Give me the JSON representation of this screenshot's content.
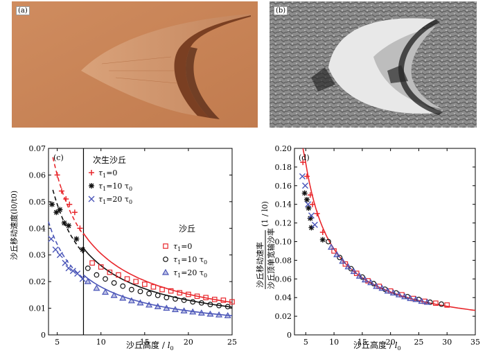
{
  "panel_a": {
    "label": "(a)"
  },
  "panel_b": {
    "label": "(b)"
  },
  "colors": {
    "red": "#e8262b",
    "black": "#111111",
    "blue": "#4a55b8",
    "sand": "#c8845a"
  },
  "chart_data": [
    {
      "type": "scatter",
      "panel": "(c)",
      "xlabel": "沙丘高度 / ",
      "xlabel_sym": "l",
      "xlabel_sub": "0",
      "ylabel": "沙丘移动速度(l0/t0)",
      "xlim": [
        4,
        25
      ],
      "ylim": [
        0,
        0.07
      ],
      "xticks": [
        5,
        10,
        15,
        20,
        25
      ],
      "yticks": [
        0,
        0.01,
        0.02,
        0.03,
        0.04,
        0.05,
        0.06,
        0.07
      ],
      "ytick_labels": [
        "0",
        "0.01",
        "0.02",
        "0.03",
        "0.04",
        "0.05",
        "0.06",
        "0.07"
      ],
      "divider_x": 8,
      "legend_left_title": "次生沙丘",
      "legend_right_title": "沙丘",
      "legend_entries": [
        {
          "sym": "τ",
          "sub": "1",
          "rest": "=0"
        },
        {
          "sym": "τ",
          "sub": "1",
          "rest": "=10 τ",
          "sub2": "0"
        },
        {
          "sym": "τ",
          "sub": "1",
          "rest": "=20 τ",
          "sub2": "0"
        }
      ],
      "series": [
        {
          "name": "次生沙丘 τ1=0",
          "marker": "plus",
          "color": "#e8262b",
          "x": [
            5.0,
            5.5,
            6.0,
            6.4,
            7.0,
            7.6
          ],
          "y": [
            0.06,
            0.054,
            0.051,
            0.049,
            0.046,
            0.04
          ]
        },
        {
          "name": "次生沙丘 τ1=10τ0",
          "marker": "star",
          "color": "#111111",
          "x": [
            4.4,
            4.9,
            5.3,
            5.8,
            6.3,
            7.2,
            7.9
          ],
          "y": [
            0.049,
            0.046,
            0.047,
            0.042,
            0.041,
            0.036,
            0.032
          ]
        },
        {
          "name": "次生沙丘 τ1=20τ0",
          "marker": "cross",
          "color": "#4a55b8",
          "x": [
            4.3,
            4.8,
            5.3,
            5.9,
            6.3,
            6.8,
            7.3,
            7.9
          ],
          "y": [
            0.036,
            0.032,
            0.03,
            0.027,
            0.025,
            0.024,
            0.023,
            0.021
          ]
        },
        {
          "name": "沙丘 τ1=0",
          "marker": "square",
          "color": "#e8262b",
          "x": [
            9,
            10,
            11,
            12,
            13,
            14,
            15,
            16,
            17,
            18,
            19,
            20,
            21,
            22,
            23,
            24,
            25
          ],
          "y": [
            0.027,
            0.0255,
            0.0235,
            0.0225,
            0.021,
            0.02,
            0.019,
            0.018,
            0.017,
            0.0165,
            0.0158,
            0.0152,
            0.0145,
            0.014,
            0.0133,
            0.013,
            0.0124
          ]
        },
        {
          "name": "沙丘 τ1=10τ0",
          "marker": "circle",
          "color": "#111111",
          "x": [
            8.5,
            9.5,
            10.5,
            11.5,
            12.5,
            13.5,
            14.5,
            15.5,
            16.5,
            17.5,
            18.5,
            19.5,
            20.5,
            21.5,
            22.5,
            23.5,
            24.5
          ],
          "y": [
            0.025,
            0.0225,
            0.021,
            0.0195,
            0.0183,
            0.017,
            0.0163,
            0.0155,
            0.0148,
            0.014,
            0.0135,
            0.013,
            0.0124,
            0.012,
            0.0114,
            0.011,
            0.0106
          ]
        },
        {
          "name": "沙丘 τ1=20τ0",
          "marker": "triangle",
          "color": "#4a55b8",
          "x": [
            8.5,
            9.5,
            10.5,
            11.5,
            12.5,
            13.5,
            14.5,
            15.5,
            16.5,
            17.5,
            18.5,
            19.5,
            20.5,
            21.5,
            22.5,
            23.5,
            24.5
          ],
          "y": [
            0.02,
            0.0175,
            0.016,
            0.0148,
            0.0138,
            0.0128,
            0.012,
            0.0112,
            0.0106,
            0.01,
            0.0095,
            0.009,
            0.0086,
            0.0082,
            0.0078,
            0.0075,
            0.0072
          ]
        }
      ],
      "fits": [
        {
          "color": "#e8262b",
          "dash": true,
          "a": 0.3,
          "xrange": [
            4.5,
            8
          ]
        },
        {
          "color": "#111111",
          "dash": true,
          "a": 0.245,
          "xrange": [
            4.5,
            8
          ]
        },
        {
          "color": "#4a55b8",
          "dash": true,
          "a": 0.17,
          "xrange": [
            4.0,
            8
          ]
        },
        {
          "color": "#e8262b",
          "dash": false,
          "a": 0.305,
          "xrange": [
            8,
            25
          ]
        },
        {
          "color": "#111111",
          "dash": false,
          "a": 0.26,
          "xrange": [
            8,
            25
          ]
        },
        {
          "color": "#4a55b8",
          "dash": false,
          "a": 0.18,
          "xrange": [
            8,
            25
          ]
        }
      ]
    },
    {
      "type": "scatter",
      "panel": "(d)",
      "xlabel": "沙丘高度 / ",
      "xlabel_sym": "l",
      "xlabel_sub": "0",
      "ylabel_num": "沙丘移动速率",
      "ylabel_den": "沙丘顶单宽输沙率",
      "ylabel_unit": "(1 / l0)",
      "xlim": [
        3,
        35
      ],
      "ylim": [
        0,
        0.2
      ],
      "xticks": [
        5,
        10,
        15,
        20,
        25,
        30,
        35
      ],
      "yticks": [
        0,
        0.02,
        0.04,
        0.06,
        0.08,
        0.1,
        0.12,
        0.14,
        0.16,
        0.18,
        0.2
      ],
      "ytick_labels": [
        "0",
        "0.02",
        "0.04",
        "0.06",
        "0.08",
        "0.10",
        "0.12",
        "0.14",
        "0.16",
        "0.18",
        "0.20"
      ],
      "fit_a": 0.92,
      "fit_xrange": [
        4.5,
        35
      ],
      "series": [
        {
          "name": "τ1=0",
          "marker": "plus",
          "color": "#e8262b",
          "x": [
            4.5,
            5.2,
            5.8,
            6.2,
            7.0,
            8.0
          ],
          "y": [
            0.185,
            0.17,
            0.15,
            0.14,
            0.13,
            0.11
          ]
        },
        {
          "name": "τ1=10τ0",
          "marker": "star",
          "color": "#111111",
          "x": [
            4.8,
            5.2,
            5.5,
            5.8,
            6.0,
            8.0
          ],
          "y": [
            0.152,
            0.145,
            0.136,
            0.125,
            0.115,
            0.102
          ]
        },
        {
          "name": "τ1=20τ0",
          "marker": "cross",
          "color": "#4a55b8",
          "x": [
            4.4,
            4.9,
            5.4,
            6.0,
            6.6
          ],
          "y": [
            0.17,
            0.16,
            0.14,
            0.128,
            0.118
          ]
        },
        {
          "name": "沙丘 τ1=0",
          "marker": "square",
          "color": "#e8262b",
          "x": [
            10,
            12,
            14,
            16,
            18,
            20,
            22,
            24,
            26,
            28,
            30
          ],
          "y": [
            0.09,
            0.076,
            0.066,
            0.058,
            0.052,
            0.047,
            0.043,
            0.039,
            0.036,
            0.034,
            0.032
          ]
        },
        {
          "name": "沙丘 τ1=10τ0",
          "marker": "circle",
          "color": "#111111",
          "x": [
            9,
            11,
            13,
            15,
            17,
            19,
            21,
            23,
            25,
            27,
            29
          ],
          "y": [
            0.1,
            0.083,
            0.071,
            0.062,
            0.055,
            0.049,
            0.045,
            0.041,
            0.038,
            0.035,
            0.033
          ]
        },
        {
          "name": "沙丘 τ1=20τ0",
          "marker": "triangle",
          "color": "#4a55b8",
          "x": [
            9.5,
            10.5,
            11.5,
            12.5,
            13.5,
            14.5,
            15.5,
            16.5,
            17.5,
            18.5,
            19.5,
            20.5,
            21.5,
            22.5,
            23.5,
            24.5,
            25.5,
            26.5
          ],
          "y": [
            0.094,
            0.086,
            0.079,
            0.073,
            0.068,
            0.063,
            0.059,
            0.056,
            0.052,
            0.05,
            0.047,
            0.045,
            0.043,
            0.041,
            0.039,
            0.038,
            0.036,
            0.035
          ]
        }
      ]
    }
  ]
}
